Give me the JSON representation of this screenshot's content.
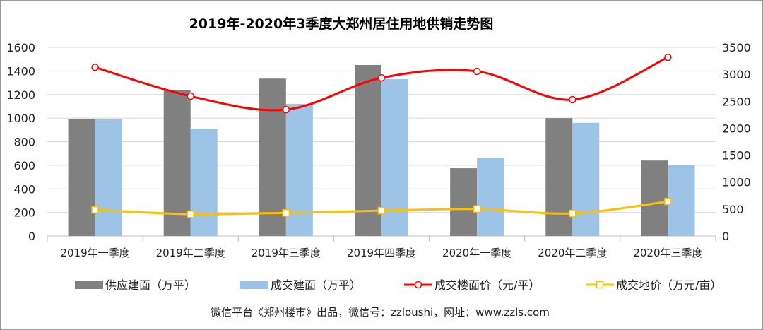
{
  "chart_data": {
    "type": "bar+line",
    "title": "2019年-2020年3季度大郑州居住用地供销走势图",
    "categories": [
      "2019年一季度",
      "2019年二季度",
      "2019年三季度",
      "2019年四季度",
      "2020年一季度",
      "2020年二季度",
      "2020年三季度"
    ],
    "y_left": {
      "range": [
        0,
        1600
      ],
      "ticks": [
        "0",
        "200",
        "400",
        "600",
        "800",
        "1000",
        "1200",
        "1400",
        "1600"
      ]
    },
    "y_right": {
      "range": [
        0,
        3500
      ],
      "ticks": [
        "0",
        "500",
        "1000",
        "1500",
        "2000",
        "2500",
        "3000",
        "3500"
      ]
    },
    "grid": true,
    "legend_position": "bottom",
    "series": [
      {
        "name": "供应建面（万平）",
        "type": "bar",
        "axis": "left",
        "color": "#808080",
        "values": [
          990,
          1240,
          1335,
          1450,
          575,
          1000,
          640
        ]
      },
      {
        "name": "成交建面（万平）",
        "type": "bar",
        "axis": "left",
        "color": "#9dc3e6",
        "values": [
          990,
          910,
          1120,
          1330,
          665,
          960,
          600
        ]
      },
      {
        "name": "成交楼面价（元/平）",
        "type": "line",
        "axis": "right",
        "color": "#ff0000",
        "values": [
          3130,
          2595,
          2345,
          2935,
          3055,
          2530,
          3315
        ]
      },
      {
        "name": "成交地价（万元/亩）",
        "type": "line",
        "axis": "right",
        "color": "#ffc000",
        "values": [
          485,
          405,
          430,
          470,
          500,
          420,
          640
        ]
      }
    ]
  },
  "footer": "微信平台《郑州楼市》出品，微信号：zzloushi，网址：www.zzls.com"
}
